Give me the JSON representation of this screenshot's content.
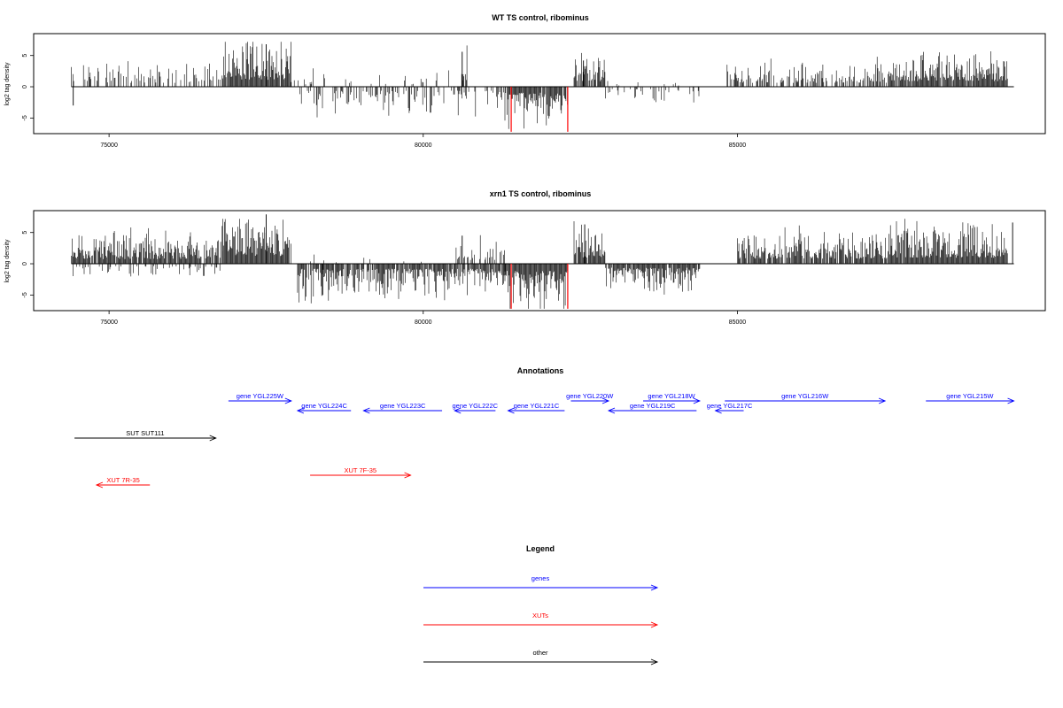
{
  "chart_data": [
    {
      "type": "bar",
      "title": "WT TS control, ribominus",
      "ylabel": "log2 tag density",
      "xlim": [
        73800,
        89900
      ],
      "ylim": [
        -7.5,
        8.5
      ],
      "x_ticks": [
        75000,
        80000,
        85000
      ],
      "y_ticks": [
        -5,
        0,
        5
      ],
      "y_tick_labels": [
        "-5",
        "0",
        "5"
      ],
      "highlight_lines": [
        {
          "x": 81400,
          "y": -7.2,
          "color": "#ff0000"
        },
        {
          "x": 82300,
          "y": -7.2,
          "color": "#ff0000"
        }
      ]
    },
    {
      "type": "bar",
      "title": "xrn1 TS control, ribominus",
      "ylabel": "log2 tag density",
      "xlim": [
        73800,
        89900
      ],
      "ylim": [
        -7.5,
        8.5
      ],
      "x_ticks": [
        75000,
        80000,
        85000
      ],
      "y_ticks": [
        -5,
        0,
        5
      ],
      "y_tick_labels": [
        "-5",
        "0",
        "5"
      ],
      "highlight_lines": [
        {
          "x": 81400,
          "y": -7.2,
          "color": "#ff0000"
        },
        {
          "x": 82300,
          "y": -7.2,
          "color": "#ff0000"
        }
      ]
    }
  ],
  "annotations": {
    "title": "Annotations",
    "features": [
      {
        "label": "gene YGL225W",
        "start": 76900,
        "end": 77900,
        "strand": "+",
        "kind": "gene",
        "row": 0
      },
      {
        "label": "gene YGL224C",
        "start": 78000,
        "end": 78850,
        "strand": "-",
        "kind": "gene",
        "row": 1
      },
      {
        "label": "gene YGL223C",
        "start": 79050,
        "end": 80300,
        "strand": "-",
        "kind": "gene",
        "row": 1
      },
      {
        "label": "gene YGL222C",
        "start": 80500,
        "end": 81150,
        "strand": "-",
        "kind": "gene",
        "row": 1
      },
      {
        "label": "gene YGL221C",
        "start": 81350,
        "end": 82250,
        "strand": "-",
        "kind": "gene",
        "row": 1
      },
      {
        "label": "gene YGL220W",
        "start": 82350,
        "end": 82950,
        "strand": "+",
        "kind": "gene",
        "row": 0
      },
      {
        "label": "gene YGL219C",
        "start": 82950,
        "end": 84350,
        "strand": "-",
        "kind": "gene",
        "row": 1
      },
      {
        "label": "gene YGL218W",
        "start": 83500,
        "end": 84400,
        "strand": "+",
        "kind": "gene",
        "row": 0
      },
      {
        "label": "gene YGL217C",
        "start": 84650,
        "end": 85100,
        "strand": "-",
        "kind": "gene",
        "row": 1
      },
      {
        "label": "gene YGL216W",
        "start": 84800,
        "end": 87350,
        "strand": "+",
        "kind": "gene",
        "row": 0
      },
      {
        "label": "gene YGL215W",
        "start": 88000,
        "end": 89400,
        "strand": "+",
        "kind": "gene",
        "row": 0
      },
      {
        "label": "SUT SUT111",
        "start": 74450,
        "end": 76700,
        "strand": "+",
        "kind": "other",
        "row": 2
      },
      {
        "label": "XUT 7F-35",
        "start": 78200,
        "end": 79800,
        "strand": "+",
        "kind": "xut",
        "row": 3
      },
      {
        "label": "XUT 7R-35",
        "start": 74800,
        "end": 75650,
        "strand": "-",
        "kind": "xut",
        "row": 4
      }
    ]
  },
  "legend": {
    "title": "Legend",
    "items": [
      {
        "label": "genes",
        "color": "#0000ff"
      },
      {
        "label": "XUTs",
        "color": "#ff0000"
      },
      {
        "label": "other",
        "color": "#000000"
      }
    ]
  },
  "colors": {
    "gene": "#0000ff",
    "xut": "#ff0000",
    "other": "#000000",
    "bars": "#000000",
    "highlight": "#ff0000"
  }
}
